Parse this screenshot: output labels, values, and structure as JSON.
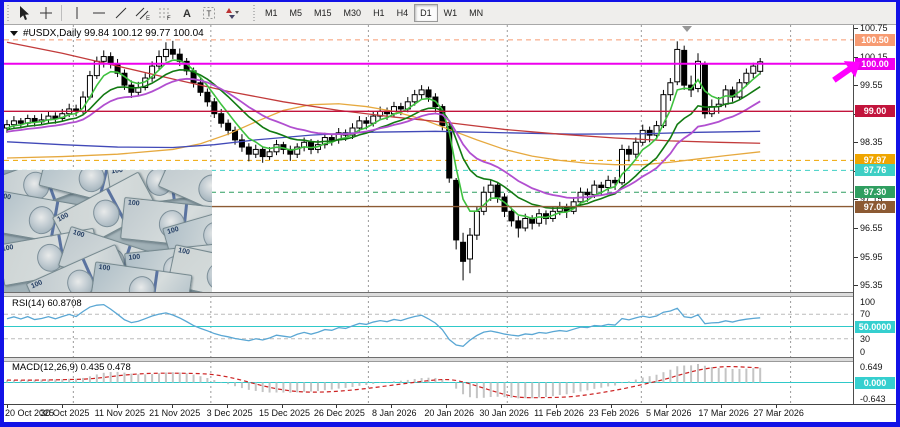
{
  "toolbar": {
    "tools": [
      "cursor",
      "crosshair",
      "separator",
      "vertical-line",
      "horizontal-line",
      "trendline",
      "equidistant-channel",
      "fibonacci-retracement",
      "text",
      "text-label",
      "arrows"
    ],
    "timeframes": [
      "M1",
      "M5",
      "M15",
      "M30",
      "H1",
      "H4",
      "D1",
      "W1",
      "MN"
    ],
    "active_timeframe": "D1"
  },
  "chart": {
    "title_symbol": "#USDX,Daily",
    "title_ohlc": "99.84 100.12 99.77 100.04",
    "rsi_label": "RSI(14) 60.8708",
    "macd_label": "MACD(12,26,9) 0.435 0.478"
  },
  "price_axis": {
    "plain_ticks": [
      "100.75",
      "100.15",
      "99.55",
      "98.95",
      "98.35",
      "97.75",
      "97.15",
      "96.55",
      "95.95",
      "95.35"
    ],
    "badges": [
      {
        "label": "100.50",
        "price": 100.5,
        "color": "#f79b72",
        "line": "dashed",
        "width": 1
      },
      {
        "label": "100.00",
        "price": 100.0,
        "color": "#ee00ee",
        "line": "solid",
        "width": 2
      },
      {
        "label": "99.00",
        "price": 99.0,
        "color": "#c2143c",
        "line": "solid",
        "width": 1.3
      },
      {
        "label": "97.97",
        "price": 97.97,
        "color": "#efa500",
        "line": "dashed",
        "width": 1
      },
      {
        "label": "97.76",
        "price": 97.76,
        "color": "#3ecfc4",
        "line": "dashed",
        "width": 1
      },
      {
        "label": "97.30",
        "price": 97.3,
        "color": "#2f9e60",
        "line": "dashed",
        "width": 1
      },
      {
        "label": "97.00",
        "price": 97.0,
        "color": "#8c5a33",
        "line": "solid",
        "width": 1.3
      }
    ]
  },
  "rsi_axis": {
    "top": "100",
    "upper": "70",
    "badge": "50.0000",
    "badge_color": "#35cfcf",
    "lower": "30",
    "bottom": "0"
  },
  "macd_axis": {
    "top": "0.649",
    "zero": "0.000",
    "zero_color": "#35cfcf",
    "bottom": "-0.643"
  },
  "date_axis": {
    "labels": [
      "20 Oct 2025",
      "30 Oct 2025",
      "11 Nov 2025",
      "21 Nov 2025",
      "3 Dec 2025",
      "15 Dec 2025",
      "26 Dec 2025",
      "8 Jan 2026",
      "20 Jan 2026",
      "30 Jan 2026",
      "11 Feb 2026",
      "23 Feb 2026",
      "5 Mar 2026",
      "17 Mar 2026",
      "27 Mar 2026"
    ]
  },
  "photo": {
    "description": "collage of US one hundred dollar bills",
    "bills": [
      [
        -18,
        -6,
        -20,
        0
      ],
      [
        38,
        -14,
        14,
        1
      ],
      [
        105,
        -10,
        -8,
        2
      ],
      [
        158,
        -4,
        24,
        0
      ],
      [
        -12,
        28,
        10,
        1
      ],
      [
        52,
        22,
        -28,
        2
      ],
      [
        118,
        32,
        6,
        0
      ],
      [
        162,
        44,
        -16,
        1
      ],
      [
        -4,
        66,
        -10,
        2
      ],
      [
        58,
        70,
        18,
        0
      ],
      [
        122,
        78,
        -6,
        1
      ],
      [
        166,
        84,
        12,
        2
      ],
      [
        26,
        92,
        -24,
        0
      ],
      [
        88,
        98,
        8,
        1
      ]
    ]
  },
  "markers": {
    "price_arrow_color": "#ff00ff",
    "top_triangle_color": "#979797"
  },
  "chart_data": {
    "type": "candlestick",
    "symbol": "#USDX",
    "period": "Daily",
    "last_ohlc": {
      "open": 99.84,
      "high": 100.12,
      "low": 99.77,
      "close": 100.04
    },
    "visible_price_range": [
      95.2,
      100.8
    ],
    "levels_note": "horizontal lines mirror price_axis.badges",
    "warmup_closes": [
      98.2,
      98.25,
      98.3,
      98.2,
      98.35,
      98.3,
      98.4,
      98.35,
      98.45,
      98.4,
      98.5,
      98.45,
      98.55,
      98.5,
      98.6,
      98.55,
      98.5,
      98.6,
      98.55,
      98.65,
      98.6,
      98.7,
      98.65,
      98.6,
      98.55,
      98.65,
      98.6,
      98.55,
      98.6,
      98.65
    ],
    "candles": [
      [
        98.65,
        98.82,
        98.55,
        98.72
      ],
      [
        98.72,
        98.9,
        98.66,
        98.8
      ],
      [
        98.8,
        98.86,
        98.64,
        98.75
      ],
      [
        98.75,
        98.93,
        98.7,
        98.85
      ],
      [
        98.85,
        98.92,
        98.68,
        98.78
      ],
      [
        98.78,
        98.95,
        98.72,
        98.82
      ],
      [
        98.82,
        99.0,
        98.76,
        98.9
      ],
      [
        98.9,
        98.98,
        98.74,
        98.85
      ],
      [
        98.85,
        99.05,
        98.8,
        98.95
      ],
      [
        98.95,
        99.16,
        98.88,
        99.05
      ],
      [
        99.05,
        99.14,
        98.9,
        99.0
      ],
      [
        99.0,
        99.42,
        98.95,
        99.3
      ],
      [
        99.3,
        99.85,
        99.25,
        99.75
      ],
      [
        99.75,
        100.15,
        99.68,
        100.05
      ],
      [
        100.05,
        100.28,
        99.92,
        100.15
      ],
      [
        100.15,
        100.24,
        99.9,
        100.0
      ],
      [
        100.0,
        100.1,
        99.72,
        99.8
      ],
      [
        99.8,
        99.88,
        99.45,
        99.55
      ],
      [
        99.55,
        99.65,
        99.28,
        99.4
      ],
      [
        99.4,
        99.62,
        99.32,
        99.5
      ],
      [
        99.5,
        99.8,
        99.44,
        99.7
      ],
      [
        99.7,
        100.05,
        99.62,
        99.95
      ],
      [
        99.95,
        100.28,
        99.88,
        100.15
      ],
      [
        100.15,
        100.45,
        100.05,
        100.3
      ],
      [
        100.3,
        100.48,
        100.1,
        100.2
      ],
      [
        100.2,
        100.32,
        99.95,
        100.05
      ],
      [
        100.05,
        100.12,
        99.76,
        99.85
      ],
      [
        99.85,
        99.92,
        99.5,
        99.6
      ],
      [
        99.6,
        99.72,
        99.32,
        99.4
      ],
      [
        99.4,
        99.48,
        99.1,
        99.2
      ],
      [
        99.2,
        99.28,
        98.86,
        98.95
      ],
      [
        98.95,
        99.05,
        98.66,
        98.75
      ],
      [
        98.75,
        98.83,
        98.5,
        98.6
      ],
      [
        98.6,
        98.68,
        98.3,
        98.4
      ],
      [
        98.4,
        98.52,
        98.15,
        98.25
      ],
      [
        98.25,
        98.33,
        97.95,
        98.1
      ],
      [
        98.1,
        98.3,
        98.02,
        98.2
      ],
      [
        98.2,
        98.26,
        97.92,
        98.05
      ],
      [
        98.05,
        98.25,
        97.98,
        98.15
      ],
      [
        98.15,
        98.4,
        98.08,
        98.3
      ],
      [
        98.3,
        98.36,
        98.1,
        98.2
      ],
      [
        98.2,
        98.28,
        97.96,
        98.1
      ],
      [
        98.1,
        98.33,
        98.02,
        98.25
      ],
      [
        98.25,
        98.45,
        98.16,
        98.35
      ],
      [
        98.35,
        98.42,
        98.1,
        98.2
      ],
      [
        98.2,
        98.4,
        98.12,
        98.3
      ],
      [
        98.3,
        98.55,
        98.22,
        98.45
      ],
      [
        98.45,
        98.52,
        98.28,
        98.4
      ],
      [
        98.4,
        98.65,
        98.32,
        98.55
      ],
      [
        98.55,
        98.62,
        98.38,
        98.5
      ],
      [
        98.5,
        98.75,
        98.42,
        98.65
      ],
      [
        98.65,
        98.9,
        98.58,
        98.8
      ],
      [
        98.8,
        98.88,
        98.62,
        98.75
      ],
      [
        98.75,
        99.0,
        98.68,
        98.9
      ],
      [
        98.9,
        99.1,
        98.82,
        99.0
      ],
      [
        99.0,
        99.08,
        98.82,
        98.95
      ],
      [
        98.95,
        99.2,
        98.88,
        99.1
      ],
      [
        99.1,
        99.18,
        98.92,
        99.05
      ],
      [
        99.05,
        99.3,
        98.98,
        99.2
      ],
      [
        99.2,
        99.45,
        99.12,
        99.35
      ],
      [
        99.35,
        99.55,
        99.26,
        99.45
      ],
      [
        99.45,
        99.52,
        99.2,
        99.3
      ],
      [
        99.3,
        99.38,
        98.98,
        99.1
      ],
      [
        99.1,
        99.15,
        98.6,
        98.7
      ],
      [
        98.68,
        98.75,
        97.5,
        97.6
      ],
      [
        97.55,
        97.6,
        96.1,
        96.3
      ],
      [
        96.25,
        96.45,
        95.45,
        95.85
      ],
      [
        95.9,
        96.55,
        95.6,
        96.4
      ],
      [
        96.4,
        97.0,
        96.3,
        96.9
      ],
      [
        96.9,
        97.42,
        96.82,
        97.3
      ],
      [
        97.3,
        97.55,
        97.12,
        97.45
      ],
      [
        97.45,
        97.5,
        97.08,
        97.2
      ],
      [
        97.2,
        97.28,
        96.78,
        96.9
      ],
      [
        96.9,
        96.98,
        96.58,
        96.7
      ],
      [
        96.7,
        96.8,
        96.35,
        96.55
      ],
      [
        96.55,
        96.85,
        96.48,
        96.75
      ],
      [
        96.75,
        96.82,
        96.52,
        96.65
      ],
      [
        96.65,
        96.95,
        96.58,
        96.85
      ],
      [
        96.85,
        96.92,
        96.62,
        96.75
      ],
      [
        96.75,
        97.0,
        96.68,
        96.9
      ],
      [
        96.9,
        97.1,
        96.82,
        97.0
      ],
      [
        97.0,
        97.06,
        96.76,
        96.9
      ],
      [
        96.9,
        97.2,
        96.84,
        97.1
      ],
      [
        97.1,
        97.4,
        97.02,
        97.3
      ],
      [
        97.3,
        97.38,
        97.1,
        97.25
      ],
      [
        97.25,
        97.55,
        97.18,
        97.45
      ],
      [
        97.45,
        97.52,
        97.25,
        97.4
      ],
      [
        97.4,
        97.65,
        97.32,
        97.55
      ],
      [
        97.55,
        97.62,
        97.35,
        97.5
      ],
      [
        97.5,
        98.3,
        97.45,
        98.2
      ],
      [
        98.2,
        98.28,
        97.95,
        98.1
      ],
      [
        98.1,
        98.45,
        98.02,
        98.35
      ],
      [
        98.35,
        98.72,
        98.28,
        98.6
      ],
      [
        98.6,
        98.68,
        98.35,
        98.5
      ],
      [
        98.5,
        98.8,
        98.42,
        98.7
      ],
      [
        98.7,
        99.45,
        98.65,
        99.35
      ],
      [
        99.35,
        99.7,
        99.22,
        99.6
      ],
      [
        99.62,
        100.47,
        99.55,
        100.3
      ],
      [
        100.28,
        100.38,
        99.45,
        99.55
      ],
      [
        99.55,
        99.75,
        99.3,
        99.45
      ],
      [
        99.48,
        100.22,
        99.4,
        100.05
      ],
      [
        100.0,
        100.05,
        98.85,
        98.95
      ],
      [
        98.95,
        99.25,
        98.88,
        99.1
      ],
      [
        99.1,
        99.3,
        98.95,
        99.15
      ],
      [
        99.15,
        99.55,
        99.08,
        99.45
      ],
      [
        99.45,
        99.52,
        99.2,
        99.3
      ],
      [
        99.3,
        99.68,
        99.24,
        99.6
      ],
      [
        99.6,
        99.9,
        99.52,
        99.8
      ],
      [
        99.8,
        100.02,
        99.7,
        99.95
      ],
      [
        99.84,
        100.12,
        99.77,
        100.04
      ]
    ],
    "overlays": {
      "ema_fast": {
        "period": 5,
        "color": "#3ec13e"
      },
      "ema_mid": {
        "period": 12,
        "color": "#127a12"
      },
      "ema_slow": {
        "period": 20,
        "color": "#b14fd0"
      },
      "slow_lines": [
        {
          "name": "ma-gold",
          "color": "#e6a93f",
          "points": [
            [
              0,
              98.02
            ],
            [
              8,
              98.05
            ],
            [
              16,
              98.1
            ],
            [
              24,
              98.2
            ],
            [
              28,
              98.32
            ],
            [
              32,
              98.52
            ],
            [
              36,
              98.78
            ],
            [
              40,
              99.02
            ],
            [
              44,
              99.14
            ],
            [
              48,
              99.16
            ],
            [
              52,
              99.1
            ],
            [
              56,
              99.0
            ],
            [
              60,
              98.84
            ],
            [
              64,
              98.62
            ],
            [
              68,
              98.4
            ],
            [
              72,
              98.2
            ],
            [
              76,
              98.06
            ],
            [
              80,
              97.97
            ],
            [
              84,
              97.91
            ],
            [
              88,
              97.88
            ],
            [
              92,
              97.88
            ],
            [
              96,
              97.93
            ],
            [
              100,
              98.0
            ],
            [
              104,
              98.07
            ],
            [
              109,
              98.15
            ]
          ]
        },
        {
          "name": "ma-blue",
          "color": "#4149b8",
          "points": [
            [
              0,
              98.36
            ],
            [
              8,
              98.3
            ],
            [
              16,
              98.25
            ],
            [
              24,
              98.24
            ],
            [
              30,
              98.3
            ],
            [
              36,
              98.4
            ],
            [
              44,
              98.5
            ],
            [
              52,
              98.56
            ],
            [
              62,
              98.58
            ],
            [
              72,
              98.55
            ],
            [
              82,
              98.52
            ],
            [
              92,
              98.53
            ],
            [
              100,
              98.56
            ],
            [
              109,
              98.58
            ]
          ]
        },
        {
          "name": "ma-red",
          "color": "#c23b3b",
          "points": [
            [
              0,
              100.45
            ],
            [
              8,
              100.22
            ],
            [
              16,
              99.95
            ],
            [
              24,
              99.68
            ],
            [
              32,
              99.42
            ],
            [
              40,
              99.2
            ],
            [
              48,
              99.02
            ],
            [
              56,
              98.88
            ],
            [
              64,
              98.76
            ],
            [
              72,
              98.62
            ],
            [
              80,
              98.52
            ],
            [
              88,
              98.44
            ],
            [
              96,
              98.38
            ],
            [
              103,
              98.35
            ],
            [
              109,
              98.33
            ]
          ]
        }
      ]
    },
    "separators_bar_index": [
      9.6,
      29.5,
      52.3,
      72.4,
      91.8,
      113.4
    ],
    "indicators": {
      "rsi": {
        "period": 14,
        "current": 60.8708,
        "levels": [
          70,
          50,
          30
        ],
        "line_color": "#5aa7d4"
      },
      "macd": {
        "fast": 12,
        "slow": 26,
        "signal_period": 9,
        "macd_value": 0.435,
        "signal_value": 0.478,
        "hist_color": "#c4c4c4",
        "signal_color": "#cc2222"
      }
    }
  }
}
